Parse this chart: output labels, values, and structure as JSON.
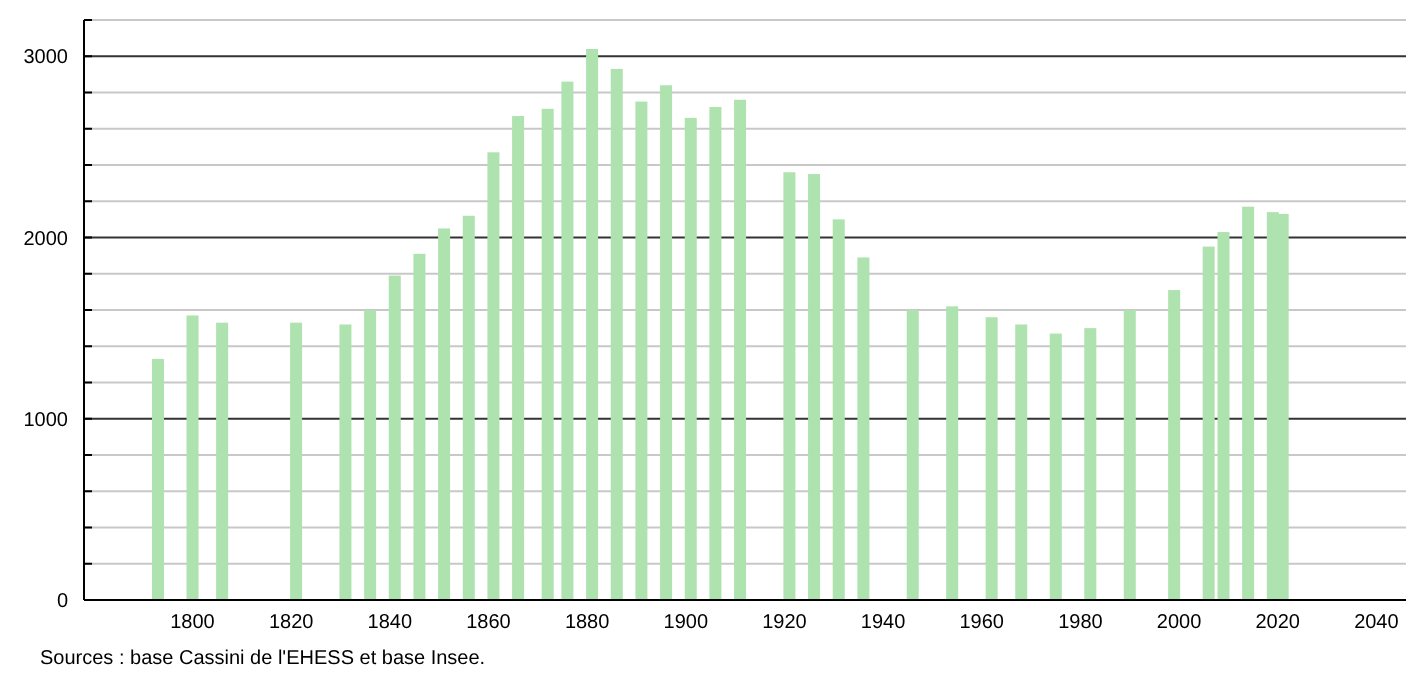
{
  "chart_data": {
    "type": "bar",
    "x": [
      1793,
      1800,
      1806,
      1821,
      1831,
      1836,
      1841,
      1846,
      1851,
      1856,
      1861,
      1866,
      1872,
      1876,
      1881,
      1886,
      1891,
      1896,
      1901,
      1906,
      1911,
      1921,
      1926,
      1931,
      1936,
      1946,
      1954,
      1962,
      1968,
      1975,
      1982,
      1990,
      1999,
      2006,
      2009,
      2014,
      2019,
      2021
    ],
    "values": [
      1330,
      1570,
      1530,
      1530,
      1520,
      1600,
      1790,
      1910,
      2050,
      2120,
      2470,
      2670,
      2710,
      2860,
      3040,
      2930,
      2750,
      2840,
      2660,
      2720,
      2760,
      2360,
      2350,
      2100,
      1890,
      1600,
      1620,
      1560,
      1520,
      1470,
      1500,
      1600,
      1710,
      1950,
      2030,
      2170,
      2140,
      2130
    ],
    "color": "#aee2ae",
    "xlim": [
      1778,
      2046
    ],
    "xticks": [
      1800,
      1820,
      1840,
      1860,
      1880,
      1900,
      1920,
      1940,
      1960,
      1980,
      2000,
      2020,
      2040
    ],
    "ylim": [
      0,
      3200
    ],
    "yticks": [
      0,
      {
        "value": 200,
        "label": null
      },
      {
        "value": 400,
        "label": null
      },
      {
        "value": 600,
        "label": null
      },
      {
        "value": 800,
        "label": null
      },
      1000,
      {
        "value": 1200,
        "label": null
      },
      {
        "value": 1400,
        "label": null
      },
      {
        "value": 1600,
        "label": null
      },
      {
        "value": 1800,
        "label": null
      },
      2000,
      {
        "value": 2200,
        "label": null
      },
      {
        "value": 2400,
        "label": null
      },
      {
        "value": 2600,
        "label": null
      },
      {
        "value": 2800,
        "label": null
      },
      3000,
      {
        "value": 3200,
        "label": null
      }
    ],
    "grid": "y",
    "annotations": [
      "Sources : base Cassini de l'EHESS et base Insee."
    ]
  }
}
